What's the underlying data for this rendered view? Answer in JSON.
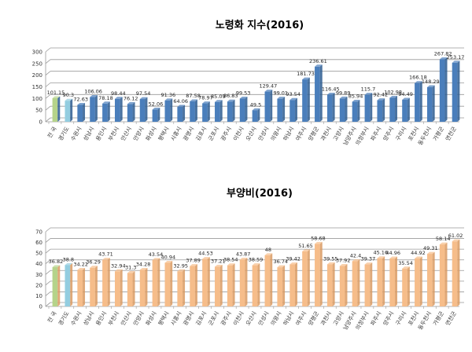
{
  "chart_data": [
    {
      "type": "bar",
      "title": "노령화 지수(2016)",
      "categories": [
        "전 국",
        "경기도",
        "수원시",
        "성남시",
        "용인시",
        "부천시",
        "안산시",
        "안양시",
        "화성시",
        "평택시",
        "시흥시",
        "광명시",
        "김포시",
        "군포시",
        "광주시",
        "이천시",
        "오산시",
        "안성시",
        "의왕시",
        "하남시",
        "여주시",
        "양평군",
        "과천시",
        "고양시",
        "남양주시",
        "의정부시",
        "파주시",
        "양주시",
        "구리시",
        "포천시",
        "동두천시",
        "가평군",
        "연천군"
      ],
      "values": [
        101.15,
        90.3,
        72.63,
        106.06,
        78.18,
        98.44,
        76.12,
        97.54,
        52.06,
        91.36,
        64.06,
        87.58,
        78.97,
        85.09,
        86.83,
        99.53,
        49.5,
        129.47,
        99.01,
        93.54,
        181.73,
        236.61,
        116.45,
        99.89,
        85.94,
        115.7,
        92.42,
        102.98,
        94.49,
        166.18,
        148.29,
        267.82,
        253.17
      ],
      "value_labels": [
        "101.15",
        "90.3",
        "72.63",
        "106.06",
        "78.18",
        "98.44",
        "76.12",
        "97.54",
        "52.06",
        "91.36",
        "64.06",
        "87.58",
        "78.97",
        "85.09",
        "86.83",
        "99.53",
        "49.5",
        "129.47",
        "99.01",
        "93.54",
        "181.73",
        "236.61",
        "116.45",
        "99.89",
        "85.94",
        "115.7",
        "92.42",
        "102.98",
        "94.49",
        "166.18",
        "148.29",
        "267.82",
        "253.17"
      ],
      "ylim": [
        0,
        300
      ],
      "yticks": [
        0,
        50,
        100,
        150,
        200,
        250,
        300
      ],
      "grid": true,
      "colors": {
        "national": "#b5d38a",
        "province": "#93cde0",
        "city": "#4a7ebb",
        "city_side": "#2c5a8f"
      }
    },
    {
      "type": "bar",
      "title": "부양비(2016)",
      "categories": [
        "전 국",
        "경기도",
        "수원시",
        "성남시",
        "용인시",
        "부천시",
        "안산시",
        "안양시",
        "화성시",
        "평택시",
        "시흥시",
        "광명시",
        "김포시",
        "군포시",
        "광주시",
        "이천시",
        "오산시",
        "안성시",
        "의왕시",
        "하남시",
        "여주시",
        "양평군",
        "과천시",
        "고양시",
        "남양주시",
        "의정부시",
        "파주시",
        "양주시",
        "구리시",
        "포천시",
        "동두천시",
        "가평군",
        "연천군"
      ],
      "values": [
        36.82,
        38.8,
        34.22,
        36.29,
        43.71,
        32.94,
        31.3,
        34.28,
        43.54,
        40.94,
        32.95,
        37.89,
        44.53,
        37.21,
        38.54,
        43.87,
        38.59,
        48,
        36.74,
        39.42,
        51.65,
        58.68,
        39.55,
        37.92,
        42.4,
        39.37,
        45.16,
        44.96,
        35.54,
        44.92,
        49.31,
        58.14,
        61.02
      ],
      "value_labels": [
        "36.82",
        "38.8",
        "34.22",
        "36.29",
        "43.71",
        "32.94",
        "31.3",
        "34.28",
        "43.54",
        "40.94",
        "32.95",
        "37.89",
        "44.53",
        "37.21",
        "38.54",
        "43.87",
        "38.59",
        "48",
        "36.74",
        "39.42",
        "51.65",
        "58.68",
        "39.55",
        "37.92",
        "42.4",
        "39.37",
        "45.16",
        "44.96",
        "35.54",
        "44.92",
        "49.31",
        "58.14",
        "61.02"
      ],
      "ylim": [
        0,
        70
      ],
      "yticks": [
        0,
        10,
        20,
        30,
        40,
        50,
        60,
        70
      ],
      "grid": true,
      "colors": {
        "national": "#b5d38a",
        "province": "#93cde0",
        "city": "#f6bd8a",
        "city_side": "#d99a62"
      }
    }
  ]
}
